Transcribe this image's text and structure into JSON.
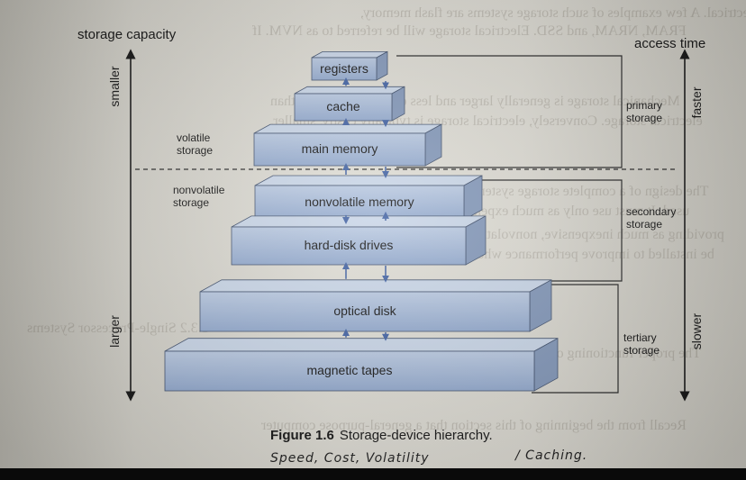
{
  "figure": {
    "title_left": "storage capacity",
    "title_right": "access time",
    "axis_left_top": "smaller",
    "axis_left_bottom": "larger",
    "axis_right_top": "faster",
    "axis_right_bottom": "slower",
    "levels": [
      {
        "label": "registers"
      },
      {
        "label": "cache"
      },
      {
        "label": "main memory"
      },
      {
        "label": "nonvolatile memory"
      },
      {
        "label": "hard-disk drives"
      },
      {
        "label": "optical disk"
      },
      {
        "label": "magnetic tapes"
      }
    ],
    "volatile_label": "volatile\nstorage",
    "nonvolatile_label": "nonvolatile\nstorage",
    "primary_label": "primary\nstorage",
    "secondary_label": "secondary\nstorage",
    "tertiary_label": "tertiary\nstorage",
    "caption_number": "Figure 1.6",
    "caption_text": "Storage-device hierarchy."
  },
  "handwriting": {
    "note_left": "Speed,  Cost,  Volatility",
    "note_right": "/  Caching."
  },
  "colors": {
    "box_front": "#a6b9d6",
    "box_top": "#c7d4e6",
    "box_side": "#7f94b6",
    "box_stroke": "#3c4c68"
  }
}
